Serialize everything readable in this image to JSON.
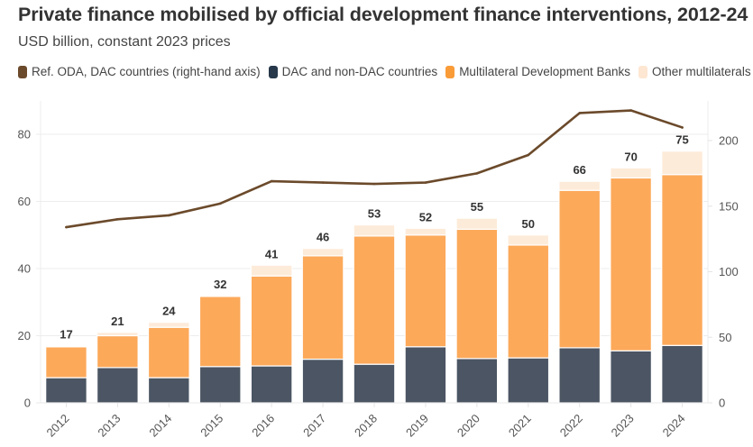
{
  "chart_data": {
    "type": "bar",
    "title": "Private finance mobilised by official development finance interventions, 2012-24",
    "subtitle": "USD billion, constant 2023 prices",
    "xlabel": "",
    "ylabel": "",
    "ylim": [
      0,
      90
    ],
    "y_ticks": [
      0,
      20,
      40,
      60,
      80
    ],
    "y2lim": [
      0,
      225
    ],
    "y2_ticks": [
      0,
      50,
      100,
      150,
      200
    ],
    "grid": true,
    "legend_position": "top-left",
    "categories": [
      "2012",
      "2013",
      "2014",
      "2015",
      "2016",
      "2017",
      "2018",
      "2019",
      "2020",
      "2021",
      "2022",
      "2023",
      "2024"
    ],
    "totals_labels": [
      "17",
      "21",
      "24",
      "32",
      "41",
      "46",
      "53",
      "52",
      "55",
      "50",
      "66",
      "70",
      "75"
    ],
    "series": [
      {
        "name": "DAC and non-DAC countries",
        "kind": "bar",
        "color": "#4b5563",
        "values": [
          7.5,
          10.5,
          7.5,
          10.8,
          11.0,
          13.0,
          11.5,
          16.7,
          13.2,
          13.4,
          16.4,
          15.5,
          17.1
        ]
      },
      {
        "name": "Multilateral Development Banks",
        "kind": "bar",
        "color": "#fca95a",
        "values": [
          9.2,
          9.5,
          15.0,
          20.9,
          26.8,
          30.8,
          38.2,
          33.3,
          38.5,
          33.6,
          46.9,
          51.5,
          50.9
        ]
      },
      {
        "name": "Other multilaterals",
        "kind": "bar",
        "color": "#fdebd9",
        "values": [
          0.3,
          1.0,
          1.5,
          0.3,
          3.2,
          2.2,
          3.3,
          2.0,
          3.3,
          3.0,
          2.7,
          3.0,
          7.0
        ]
      },
      {
        "name": "Ref. ODA, DAC countries (right-hand axis)",
        "kind": "line",
        "axis": "right",
        "color": "#6b4a2b",
        "values": [
          134,
          140,
          143,
          152,
          169,
          168,
          167,
          168,
          175,
          189,
          221,
          223,
          210
        ]
      }
    ]
  },
  "legend": [
    {
      "label": "Ref. ODA, DAC countries (right-hand axis)",
      "color": "#6b4a2b"
    },
    {
      "label": "DAC and non-DAC countries",
      "color": "#26384a"
    },
    {
      "label": "Multilateral Development Banks",
      "color": "#f99b37"
    },
    {
      "label": "Other multilaterals",
      "color": "#fde6d2"
    }
  ]
}
